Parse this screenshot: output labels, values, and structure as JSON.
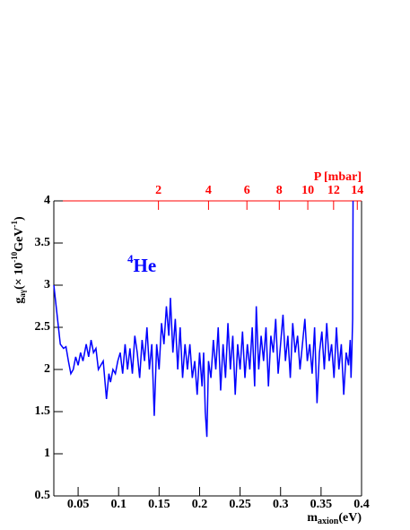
{
  "chart_data": {
    "type": "line",
    "xlabel_parts": [
      "m",
      "axion",
      "(eV)"
    ],
    "ylabel_parts": [
      "g",
      "aγ",
      "(× 10",
      "-10",
      "GeV",
      "-1",
      ")"
    ],
    "annotation_parts": [
      "4",
      "He"
    ],
    "x2label": "P [mbar]",
    "x2lim": [
      0.0359,
      14.375
    ],
    "x2scale": "sqrt",
    "x2ticks": [
      2,
      4,
      6,
      8,
      10,
      12,
      14
    ],
    "x2color": "#ff0000",
    "xlim": [
      0.02,
      0.4
    ],
    "xticks": [
      0.05,
      0.1,
      0.15,
      0.2,
      0.25,
      0.3,
      0.35,
      0.4
    ],
    "ylim": [
      0.5,
      4
    ],
    "yticks": [
      0.5,
      1,
      1.5,
      2,
      2.5,
      3,
      3.5,
      4
    ],
    "series": [
      {
        "color": "#0000ff",
        "x": [
          0.02,
          0.028,
          0.032,
          0.035,
          0.038,
          0.041,
          0.044,
          0.047,
          0.05,
          0.053,
          0.056,
          0.06,
          0.063,
          0.066,
          0.069,
          0.072,
          0.075,
          0.078,
          0.081,
          0.085,
          0.088,
          0.09,
          0.093,
          0.096,
          0.099,
          0.102,
          0.105,
          0.108,
          0.111,
          0.114,
          0.117,
          0.12,
          0.123,
          0.126,
          0.129,
          0.132,
          0.135,
          0.138,
          0.141,
          0.144,
          0.147,
          0.15,
          0.153,
          0.156,
          0.159,
          0.162,
          0.164,
          0.167,
          0.17,
          0.173,
          0.176,
          0.179,
          0.182,
          0.185,
          0.188,
          0.191,
          0.194,
          0.197,
          0.2,
          0.203,
          0.205,
          0.207,
          0.209,
          0.211,
          0.214,
          0.217,
          0.22,
          0.223,
          0.226,
          0.229,
          0.232,
          0.235,
          0.238,
          0.241,
          0.244,
          0.247,
          0.25,
          0.253,
          0.256,
          0.259,
          0.262,
          0.265,
          0.268,
          0.27,
          0.273,
          0.276,
          0.279,
          0.282,
          0.285,
          0.288,
          0.291,
          0.294,
          0.297,
          0.3,
          0.303,
          0.306,
          0.309,
          0.312,
          0.315,
          0.318,
          0.321,
          0.324,
          0.327,
          0.33,
          0.333,
          0.336,
          0.339,
          0.342,
          0.345,
          0.348,
          0.351,
          0.354,
          0.357,
          0.36,
          0.363,
          0.366,
          0.369,
          0.372,
          0.375,
          0.378,
          0.381,
          0.384,
          0.386,
          0.387,
          0.388,
          0.389,
          0.3895
        ],
        "values": [
          3.0,
          2.3,
          2.25,
          2.27,
          2.1,
          1.95,
          2.0,
          2.15,
          2.05,
          2.2,
          2.1,
          2.3,
          2.15,
          2.35,
          2.2,
          2.25,
          2.0,
          2.05,
          2.1,
          1.65,
          1.95,
          1.85,
          2.0,
          1.95,
          2.1,
          2.2,
          1.95,
          2.3,
          2.0,
          2.25,
          1.95,
          2.4,
          2.2,
          1.9,
          2.35,
          2.1,
          2.5,
          2.0,
          2.3,
          1.45,
          2.3,
          2.0,
          2.55,
          2.3,
          2.75,
          2.4,
          2.85,
          2.2,
          2.6,
          2.0,
          2.5,
          1.9,
          2.3,
          2.0,
          2.3,
          1.9,
          2.1,
          1.7,
          2.2,
          1.8,
          2.2,
          1.5,
          1.2,
          2.1,
          1.9,
          2.35,
          2.0,
          2.5,
          1.75,
          2.3,
          1.9,
          2.55,
          2.0,
          2.4,
          1.7,
          2.3,
          2.0,
          2.45,
          1.9,
          2.3,
          2.0,
          2.5,
          1.8,
          2.75,
          2.0,
          2.4,
          2.1,
          2.5,
          1.8,
          2.4,
          2.2,
          2.6,
          1.95,
          2.3,
          2.65,
          2.1,
          2.4,
          1.9,
          2.55,
          2.2,
          2.4,
          2.0,
          2.3,
          2.6,
          2.1,
          2.3,
          1.95,
          2.5,
          1.6,
          2.2,
          2.45,
          2.0,
          2.55,
          2.1,
          2.3,
          1.9,
          2.5,
          2.0,
          2.3,
          1.7,
          2.2,
          2.05,
          2.35,
          1.9,
          2.2,
          2.6,
          4.0
        ]
      }
    ]
  }
}
